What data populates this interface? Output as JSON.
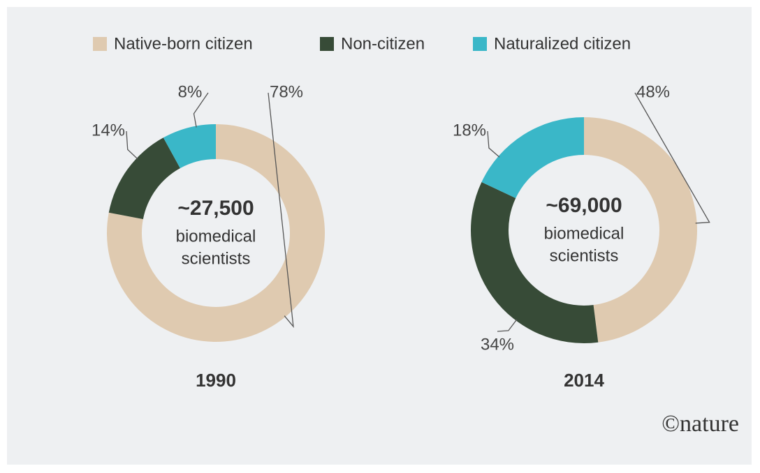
{
  "chart_data": [
    {
      "type": "pie",
      "title": "1990",
      "categories": [
        "Native-born citizen",
        "Non-citizen",
        "Naturalized citizen"
      ],
      "values": [
        78,
        14,
        8
      ],
      "value_labels": [
        "78%",
        "14%",
        "8%"
      ],
      "colors": [
        "#dfcab0",
        "#374b37",
        "#3ab7c8"
      ],
      "center_value": {
        "value": 27500,
        "label": "~27,500"
      },
      "center_text": [
        "biomedical",
        "scientists"
      ]
    },
    {
      "type": "pie",
      "title": "2014",
      "categories": [
        "Native-born citizen",
        "Non-citizen",
        "Naturalized citizen"
      ],
      "values": [
        48,
        34,
        18
      ],
      "value_labels": [
        "48%",
        "34%",
        "18%"
      ],
      "colors": [
        "#dfcab0",
        "#374b37",
        "#3ab7c8"
      ],
      "center_value": {
        "value": 69000,
        "label": "~69,000"
      },
      "center_text": [
        "biomedical",
        "scientists"
      ]
    }
  ],
  "credit": "©nature"
}
